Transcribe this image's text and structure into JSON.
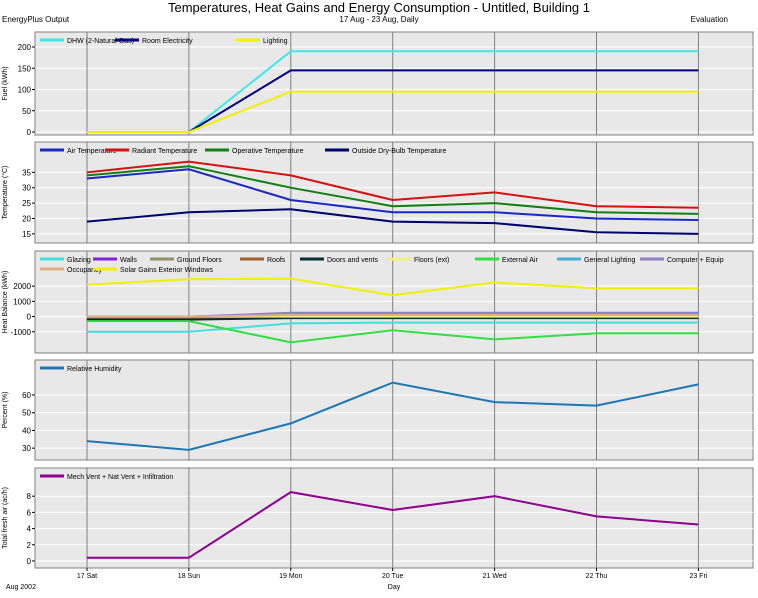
{
  "header": {
    "title": "Temperatures, Heat Gains and Energy Consumption - Untitled, Building 1",
    "subtitle": "17 Aug - 23 Aug, Daily",
    "left_tag": "EnergyPlus Output",
    "right_tag": "Evaluation"
  },
  "footer": {
    "date_label": "Aug 2002",
    "xlabel": "Day"
  },
  "chart_data": [
    {
      "type": "line",
      "title": "",
      "xlabel": "",
      "ylabel": "Fuel (kWh)",
      "categories": [
        "17 Sat",
        "18 Sun",
        "19 Mon",
        "20 Tue",
        "21 Wed",
        "22 Thu",
        "23 Fri"
      ],
      "ylim": [
        0,
        200
      ],
      "yticks": [
        0,
        50,
        100,
        150,
        200
      ],
      "grid": true,
      "series": [
        {
          "name": "DHW (2-Natural Gas)",
          "color": "#3fe8e8",
          "values": [
            0,
            0,
            190,
            190,
            190,
            190,
            190
          ]
        },
        {
          "name": "Room Electricity",
          "color": "#000080",
          "values": [
            0,
            0,
            145,
            145,
            145,
            145,
            145
          ]
        },
        {
          "name": "Lighting",
          "color": "#f0f000",
          "values": [
            0,
            0,
            95,
            95,
            95,
            95,
            95
          ]
        }
      ]
    },
    {
      "type": "line",
      "title": "",
      "xlabel": "",
      "ylabel": "Temperature (°C)",
      "categories": [
        "17 Sat",
        "18 Sun",
        "19 Mon",
        "20 Tue",
        "21 Wed",
        "22 Thu",
        "23 Fri"
      ],
      "ylim": [
        13,
        40
      ],
      "yticks": [
        15,
        20,
        25,
        30,
        35
      ],
      "grid": true,
      "series": [
        {
          "name": "Air Temperature",
          "color": "#1a28c8",
          "values": [
            33,
            36,
            26,
            22,
            22,
            20,
            19.5
          ]
        },
        {
          "name": "Radiant Temperature",
          "color": "#d81010",
          "values": [
            35,
            38.5,
            34,
            26,
            28.5,
            24,
            23.5
          ]
        },
        {
          "name": "Operative Temperature",
          "color": "#108010",
          "values": [
            34,
            37,
            30,
            24,
            25,
            22,
            21.5
          ]
        },
        {
          "name": "Outside Dry-Bulb Temperature",
          "color": "#000070",
          "values": [
            19,
            22,
            23,
            19,
            18.5,
            15.5,
            15
          ]
        }
      ]
    },
    {
      "type": "line",
      "title": "",
      "xlabel": "",
      "ylabel": "Heat Balance (kWh)",
      "categories": [
        "17 Sat",
        "18 Sun",
        "19 Mon",
        "20 Tue",
        "21 Wed",
        "22 Thu",
        "23 Fri"
      ],
      "ylim": [
        -2200,
        2800
      ],
      "yticks": [
        -1000,
        0,
        1000,
        2000
      ],
      "grid": true,
      "series": [
        {
          "name": "Glazing",
          "color": "#40e0e0",
          "values": [
            -1000,
            -1000,
            -450,
            -400,
            -400,
            -400,
            -400
          ]
        },
        {
          "name": "Walls",
          "color": "#8020e0",
          "values": [
            -50,
            -50,
            50,
            50,
            50,
            50,
            50
          ]
        },
        {
          "name": "Ground Floors",
          "color": "#909060",
          "values": [
            -150,
            -150,
            0,
            0,
            0,
            0,
            0
          ]
        },
        {
          "name": "Roofs",
          "color": "#a06030",
          "values": [
            -100,
            -100,
            20,
            20,
            20,
            20,
            20
          ]
        },
        {
          "name": "Doors and vents",
          "color": "#003030",
          "values": [
            -200,
            -200,
            -100,
            -100,
            -100,
            -100,
            -100
          ]
        },
        {
          "name": "Floors (ext)",
          "color": "#f0f080",
          "values": [
            0,
            0,
            0,
            0,
            0,
            0,
            0
          ]
        },
        {
          "name": "External Air",
          "color": "#30e040",
          "values": [
            -300,
            -300,
            -1700,
            -900,
            -1500,
            -1100,
            -1100
          ]
        },
        {
          "name": "General Lighting",
          "color": "#40b0d0",
          "values": [
            0,
            0,
            150,
            150,
            150,
            150,
            150
          ]
        },
        {
          "name": "Computer + Equip",
          "color": "#9080c8",
          "values": [
            0,
            0,
            250,
            250,
            250,
            250,
            250
          ]
        },
        {
          "name": "Occupancy",
          "color": "#e0b080",
          "values": [
            0,
            0,
            100,
            100,
            100,
            100,
            100
          ]
        },
        {
          "name": "Solar Gains Exterior Windows",
          "color": "#f0f000",
          "values": [
            2100,
            2450,
            2500,
            1400,
            2250,
            1850,
            1850
          ]
        }
      ]
    },
    {
      "type": "line",
      "title": "",
      "xlabel": "",
      "ylabel": "Percent (%)",
      "categories": [
        "17 Sat",
        "18 Sun",
        "19 Mon",
        "20 Tue",
        "21 Wed",
        "22 Thu",
        "23 Fri"
      ],
      "ylim": [
        25,
        73
      ],
      "yticks": [
        30,
        40,
        50,
        60
      ],
      "grid": true,
      "series": [
        {
          "name": "Relative Humidity",
          "color": "#1c78b4",
          "values": [
            34,
            29,
            44,
            67,
            56,
            54,
            66
          ]
        }
      ]
    },
    {
      "type": "line",
      "title": "",
      "xlabel": "",
      "ylabel": "Total fresh air (ac/h)",
      "categories": [
        "17 Sat",
        "18 Sun",
        "19 Mon",
        "20 Tue",
        "21 Wed",
        "22 Thu",
        "23 Fri"
      ],
      "ylim": [
        -0.5,
        10
      ],
      "yticks": [
        0,
        2,
        4,
        6,
        8
      ],
      "grid": true,
      "series": [
        {
          "name": "Mech Vent + Nat Vent + Infiltration",
          "color": "#900090",
          "values": [
            0.4,
            0.4,
            8.5,
            6.3,
            8.0,
            5.5,
            4.5
          ]
        }
      ]
    }
  ]
}
